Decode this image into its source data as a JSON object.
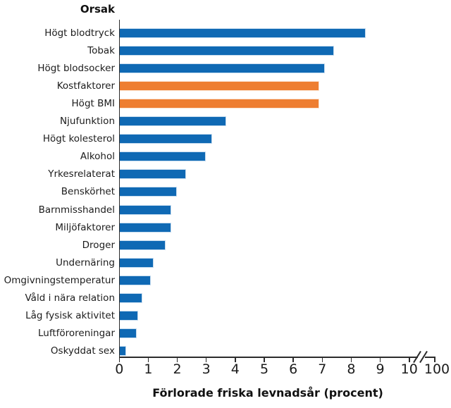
{
  "chart": {
    "title": "Orsak",
    "x_axis_title": "Förlorade friska levnadsår (procent)"
  },
  "colors": {
    "bar_blue": "#0F69B4",
    "bar_blue_border": "#C6DCEF",
    "bar_orange": "#EE7E31",
    "bar_orange_border": "#FBE3D0",
    "axis": "#2b2b2b"
  },
  "chart_data": {
    "type": "bar",
    "orientation": "horizontal",
    "title": "Orsak",
    "xlabel": "Förlorade friska levnadsår (procent)",
    "ylabel": "",
    "xlim": [
      0,
      10
    ],
    "grid": false,
    "legend": false,
    "x_ticks": [
      0,
      1,
      2,
      3,
      4,
      5,
      6,
      7,
      8,
      9,
      10
    ],
    "axis_break": {
      "present": true,
      "far_tick_label": "100"
    },
    "categories": [
      "Högt blodtryck",
      "Tobak",
      "Högt blodsocker",
      "Kostfaktorer",
      "Högt BMI",
      "Njufunktion",
      "Högt kolesterol",
      "Alkohol",
      "Yrkesrelaterat",
      "Benskörhet",
      "Barnmisshandel",
      "Miljöfaktorer",
      "Droger",
      "Undernäring",
      "Omgivningstemperatur",
      "Våld i nära relation",
      "Låg fysisk aktivitet",
      "Luftföroreningar",
      "Oskyddat sex"
    ],
    "values": [
      8.5,
      7.4,
      7.1,
      6.9,
      6.9,
      3.7,
      3.2,
      3.0,
      2.3,
      2.0,
      1.8,
      1.8,
      1.6,
      1.2,
      1.1,
      0.8,
      0.65,
      0.6,
      0.25
    ],
    "highlighted_indices": [
      3,
      4
    ],
    "highlight_meaning": "orange bars",
    "default_bar_color": "#0F69B4",
    "highlight_bar_color": "#EE7E31"
  }
}
